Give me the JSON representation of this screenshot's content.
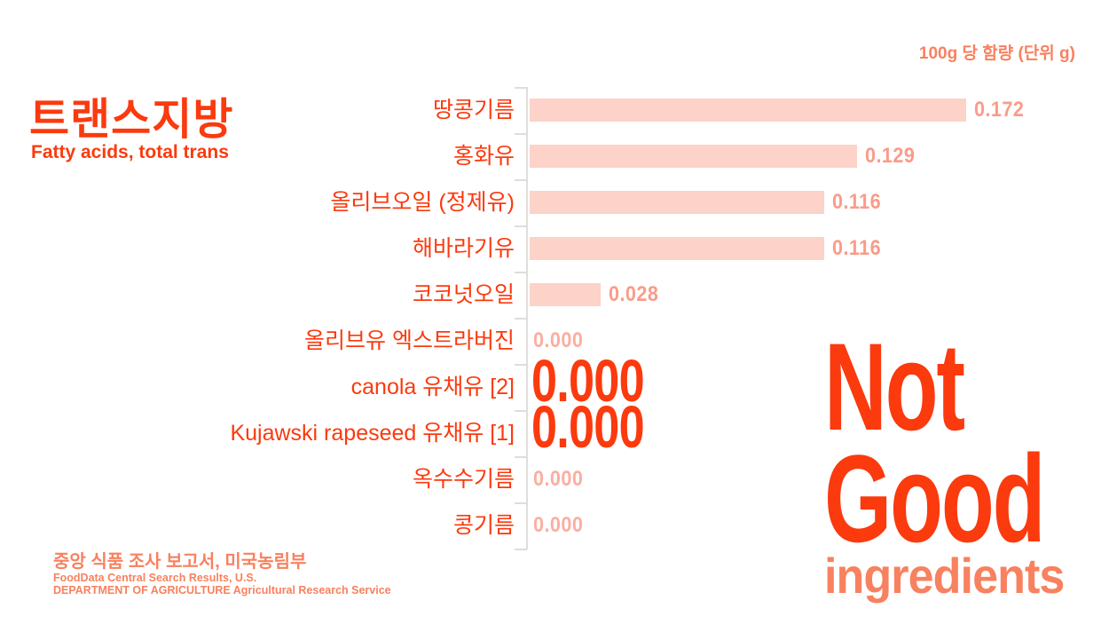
{
  "header": {
    "title": "트랜스지방",
    "subtitle": "Fatty acids, total trans",
    "unit_label": "100g 당 함량 (단위 g)"
  },
  "chart_data": {
    "type": "bar",
    "orientation": "horizontal",
    "title": "트랜스지방 / Fatty acids, total trans",
    "xlabel": "100g 당 함량 (단위 g)",
    "ylabel": "",
    "xlim": [
      0,
      0.172
    ],
    "grid": false,
    "legend": "none",
    "categories": [
      "땅콩기름",
      "홍화유",
      "올리브오일 (정제유)",
      "해바라기유",
      "코코넛오일",
      "올리브유 엑스트라버진",
      "canola 유채유 [2]",
      "Kujawski rapeseed 유채유 [1]",
      "옥수수기름",
      "콩기름"
    ],
    "values": [
      0.172,
      0.129,
      0.116,
      0.116,
      0.028,
      0.0,
      0.0,
      0.0,
      0.0,
      0.0
    ],
    "points": [
      {
        "label": "땅콩기름",
        "value": 0.172,
        "display": "0.172",
        "emphasis": false
      },
      {
        "label": "홍화유",
        "value": 0.129,
        "display": "0.129",
        "emphasis": false
      },
      {
        "label": "올리브오일 (정제유)",
        "value": 0.116,
        "display": "0.116",
        "emphasis": false
      },
      {
        "label": "해바라기유",
        "value": 0.116,
        "display": "0.116",
        "emphasis": false
      },
      {
        "label": "코코넛오일",
        "value": 0.028,
        "display": "0.028",
        "emphasis": false
      },
      {
        "label": "올리브유 엑스트라버진",
        "value": 0.0,
        "display": "0.000",
        "emphasis": false
      },
      {
        "label": "canola 유채유 [2]",
        "value": 0.0,
        "display": "0.000",
        "emphasis": true
      },
      {
        "label": "Kujawski rapeseed 유채유 [1]",
        "value": 0.0,
        "display": "0.000",
        "emphasis": true
      },
      {
        "label": "옥수수기름",
        "value": 0.0,
        "display": "0.000",
        "emphasis": false
      },
      {
        "label": "콩기름",
        "value": 0.0,
        "display": "0.000",
        "emphasis": false
      }
    ]
  },
  "stamp": {
    "line1": "Not",
    "line2": "Good",
    "line3": "ingredients"
  },
  "source": {
    "korean": "중앙 식품 조사 보고서, 미국농림부",
    "english_line1": "FoodData Central Search Results, U.S.",
    "english_line2": "DEPARTMENT OF AGRICULTURE Agricultural Research Service"
  },
  "colors": {
    "accent_red": "#fb3a0e",
    "salmon": "#f8815f",
    "bar_fill": "#fcd2c9",
    "bar_value_label": "#f99c8a",
    "zero_value_label": "#fbaea0",
    "axis": "#e0ddda"
  }
}
